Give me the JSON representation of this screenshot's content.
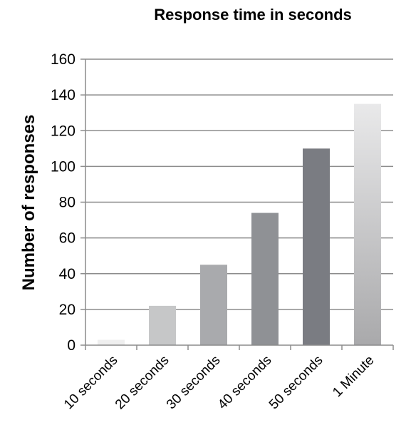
{
  "chart_data": {
    "type": "bar",
    "title": "Response time in seconds",
    "xlabel": "",
    "ylabel": "Number of responses",
    "categories": [
      "10 seconds",
      "20 seconds",
      "30 seconds",
      "40 seconds",
      "50 seconds",
      "1 Minute"
    ],
    "values": [
      3,
      22,
      45,
      74,
      110,
      135
    ],
    "ylim": [
      0,
      160
    ],
    "yticks": [
      0,
      20,
      40,
      60,
      80,
      100,
      120,
      140,
      160
    ],
    "grid": true,
    "legend": "none",
    "bar_colors": [
      "#efefef",
      "#c6c7c8",
      "#a9aaad",
      "#8f9195",
      "#7a7c82",
      "#dcdddf"
    ]
  }
}
